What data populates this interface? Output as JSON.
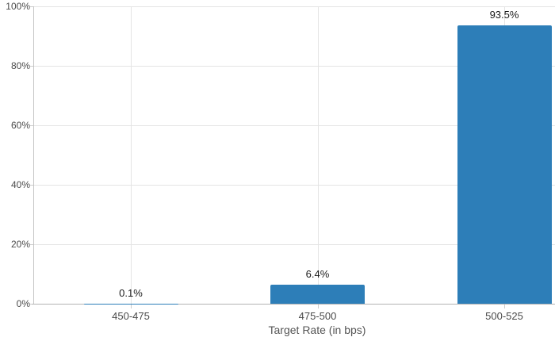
{
  "chart_data": {
    "type": "bar",
    "title": "",
    "xlabel": "Target Rate (in bps)",
    "ylabel": "",
    "categories": [
      "450-475",
      "475-500",
      "500-525"
    ],
    "values": [
      0.1,
      6.4,
      93.5
    ],
    "value_labels": [
      "0.1%",
      "6.4%",
      "93.5%"
    ],
    "ylim": [
      0,
      100
    ],
    "ytick_interval": 20,
    "ytick_labels": [
      "0%",
      "20%",
      "40%",
      "60%",
      "80%",
      "100%"
    ],
    "grid": "horizontal gridlines at 20% steps and vertical gridlines at category centers",
    "legend_position": "none"
  },
  "colors": {
    "bar": "#2d7eb8",
    "gridline": "#e4e4e4",
    "x_axis_line": "#b3b3b3",
    "y_axis_line": "#c4c4c4",
    "tick_mark": "#cccccc",
    "tick_label": "#4a4a4a",
    "value_label": "#1a1a1a",
    "axis_title": "#555555",
    "background": "#ffffff"
  }
}
